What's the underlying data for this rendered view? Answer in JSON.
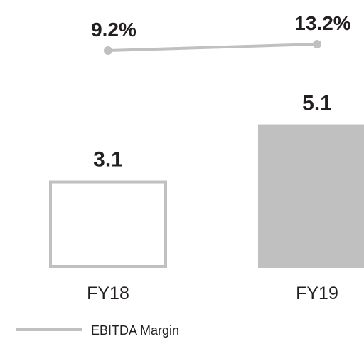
{
  "chart_data": {
    "type": "bar",
    "categories": [
      "FY18",
      "FY19"
    ],
    "series": [
      {
        "values": [
          3.1,
          5.1
        ],
        "labels": [
          "3.1",
          "5.1"
        ],
        "styles": [
          "outline",
          "filled"
        ]
      }
    ],
    "line_series": {
      "name": "EBITDA Margin",
      "values": [
        9.2,
        13.2
      ],
      "labels": [
        "9.2%",
        "13.2%"
      ]
    },
    "legend": {
      "position": "bottom-left",
      "entries": [
        "EBITDA Margin"
      ]
    },
    "grid": false,
    "colors": {
      "bar_fill": "#c0c0c0",
      "bar_outline": "#c0c0c0",
      "line": "#c0c0c0",
      "text": "#231f20"
    }
  }
}
